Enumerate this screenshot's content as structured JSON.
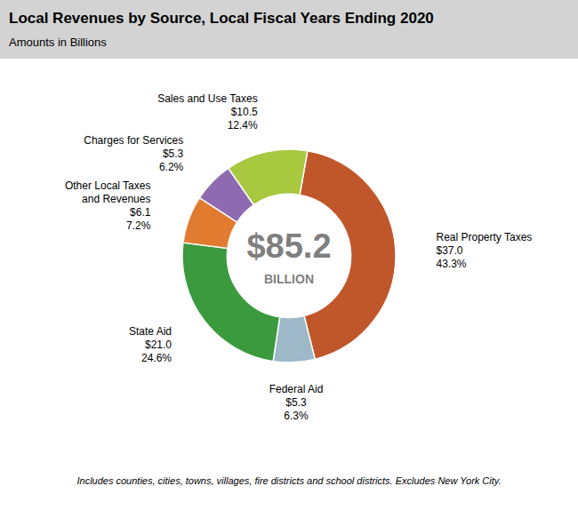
{
  "chart_data": {
    "type": "donut",
    "title": "Local Revenues by Source, Local Fiscal Years Ending 2020",
    "subtitle": "Amounts in Billions",
    "footnote": "Includes counties, cities, towns, villages, fire districts and school districts. Excludes New York City.",
    "categories": [
      "Real Property Taxes",
      "Federal Aid",
      "State Aid",
      "Other Local Taxes\nand Revenues",
      "Charges for Services",
      "Sales and Use Taxes"
    ],
    "values": [
      43.3,
      6.3,
      24.6,
      7.2,
      6.2,
      12.4
    ],
    "value_labels": [
      "43.3%",
      "6.3%",
      "24.6%",
      "7.2%",
      "6.2%",
      "12.4%"
    ],
    "amounts": [
      37.0,
      5.3,
      21.0,
      6.1,
      5.3,
      10.5
    ],
    "amount_labels": [
      "$37.0",
      "$5.3",
      "$21.0",
      "$6.1",
      "$5.3",
      "$10.5"
    ],
    "colors": [
      "#C0572A",
      "#9DB8C8",
      "#3B9A3E",
      "#E07B30",
      "#8E6BB0",
      "#A8C840"
    ],
    "total": 85.2,
    "total_label": "$85.2",
    "total_caption": "BILLION",
    "data_labels": true
  }
}
